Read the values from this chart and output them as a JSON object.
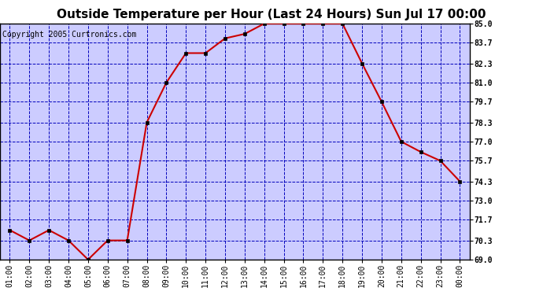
{
  "title": "Outside Temperature per Hour (Last 24 Hours) Sun Jul 17 00:00",
  "copyright": "Copyright 2005 Curtronics.com",
  "x_labels": [
    "01:00",
    "02:00",
    "03:00",
    "04:00",
    "05:00",
    "06:00",
    "07:00",
    "08:00",
    "09:00",
    "10:00",
    "11:00",
    "12:00",
    "13:00",
    "14:00",
    "15:00",
    "16:00",
    "17:00",
    "18:00",
    "19:00",
    "20:00",
    "21:00",
    "22:00",
    "23:00",
    "00:00"
  ],
  "y_values": [
    71.0,
    70.3,
    71.0,
    70.3,
    69.0,
    70.3,
    70.3,
    78.3,
    81.0,
    83.0,
    83.0,
    84.0,
    84.3,
    85.0,
    85.0,
    85.0,
    85.0,
    85.0,
    82.3,
    79.7,
    77.0,
    76.3,
    75.7,
    74.3
  ],
  "ylim": [
    69.0,
    85.0
  ],
  "y_ticks": [
    69.0,
    70.3,
    71.7,
    73.0,
    74.3,
    75.7,
    77.0,
    78.3,
    79.7,
    81.0,
    82.3,
    83.7,
    85.0
  ],
  "line_color": "#cc0000",
  "marker": "s",
  "marker_color": "#000000",
  "marker_size": 2.5,
  "grid_color": "#0000bb",
  "bg_color": "#ccccff",
  "title_fontsize": 11,
  "copyright_fontsize": 7,
  "tick_fontsize": 7,
  "outer_bg": "#ffffff"
}
